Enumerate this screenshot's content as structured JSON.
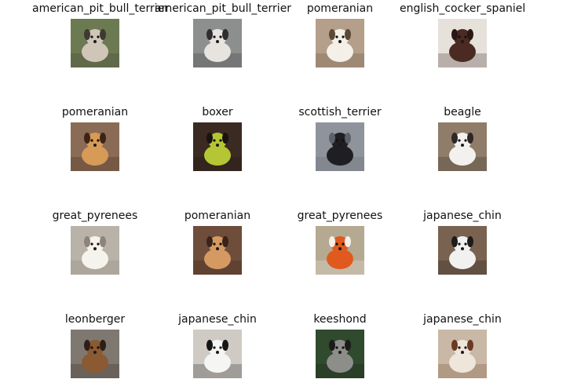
{
  "grid": {
    "columns": 4,
    "rows": 4,
    "items": [
      {
        "label": "american_pit_bull_terrier",
        "thumb": "dog-photo-icon",
        "bg": "#6c7a52",
        "fg": "#cfc6b8",
        "accent": "#3d3a33"
      },
      {
        "label": "american_pit_bull_terrier",
        "thumb": "dog-photo-icon",
        "bg": "#8c8f8e",
        "fg": "#e7e3df",
        "accent": "#2f2d2e"
      },
      {
        "label": "pomeranian",
        "thumb": "dog-photo-icon",
        "bg": "#b49f8a",
        "fg": "#f4efe7",
        "accent": "#5d4838"
      },
      {
        "label": "english_cocker_spaniel",
        "thumb": "dog-photo-icon",
        "bg": "#e7e1dc",
        "fg": "#4a2a22",
        "accent": "#2a1814"
      },
      {
        "label": "pomeranian",
        "thumb": "dog-photo-icon",
        "bg": "#8a6b55",
        "fg": "#d79a57",
        "accent": "#3b2416"
      },
      {
        "label": "boxer",
        "thumb": "dog-photo-icon",
        "bg": "#3b2a22",
        "fg": "#b5c634",
        "accent": "#1b1210"
      },
      {
        "label": "scottish_terrier",
        "thumb": "dog-photo-icon",
        "bg": "#8f949c",
        "fg": "#1f1f23",
        "accent": "#5c616a"
      },
      {
        "label": "beagle",
        "thumb": "dog-photo-icon",
        "bg": "#8f7c69",
        "fg": "#f3f1ed",
        "accent": "#2d2824"
      },
      {
        "label": "great_pyrenees",
        "thumb": "dog-photo-icon",
        "bg": "#b8b2a8",
        "fg": "#f6f3ed",
        "accent": "#8c8479"
      },
      {
        "label": "pomeranian",
        "thumb": "dog-photo-icon",
        "bg": "#6e4d3b",
        "fg": "#d49a62",
        "accent": "#3a2318"
      },
      {
        "label": "great_pyrenees",
        "thumb": "dog-photo-icon",
        "bg": "#b6a992",
        "fg": "#e05a1f",
        "accent": "#f4f1ea"
      },
      {
        "label": "japanese_chin",
        "thumb": "dog-photo-icon",
        "bg": "#7a6250",
        "fg": "#f1f1f0",
        "accent": "#1c1c1d"
      },
      {
        "label": "leonberger",
        "thumb": "dog-photo-icon",
        "bg": "#7f7870",
        "fg": "#8b5a33",
        "accent": "#2c1f16"
      },
      {
        "label": "japanese_chin",
        "thumb": "dog-photo-icon",
        "bg": "#cfcac3",
        "fg": "#f5f5f4",
        "accent": "#151515"
      },
      {
        "label": "keeshond",
        "thumb": "dog-photo-icon",
        "bg": "#2f4a2c",
        "fg": "#8d8d8a",
        "accent": "#1b1b1a"
      },
      {
        "label": "japanese_chin",
        "thumb": "dog-photo-icon",
        "bg": "#c9b8a5",
        "fg": "#efe6db",
        "accent": "#6b3a22"
      }
    ]
  }
}
